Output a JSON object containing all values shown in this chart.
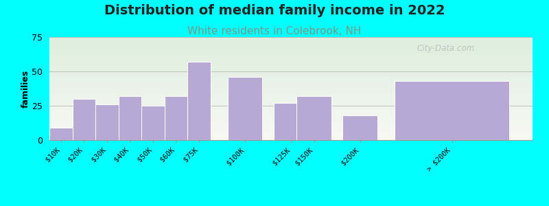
{
  "title": "Distribution of median family income in 2022",
  "subtitle": "White residents in Colebrook, NH",
  "ylabel": "families",
  "categories": [
    "$10K",
    "$20K",
    "$30K",
    "$40K",
    "$50K",
    "$60K",
    "$75K",
    "$100K",
    "$125K",
    "$150K",
    "$200K",
    "> $200K"
  ],
  "values": [
    9,
    30,
    26,
    32,
    25,
    32,
    57,
    46,
    27,
    32,
    18,
    43
  ],
  "bar_color": "#b8a9d4",
  "bar_edge_color": "#ffffff",
  "ylim": [
    0,
    75
  ],
  "yticks": [
    0,
    25,
    50,
    75
  ],
  "background_color": "#00ffff",
  "plot_bg_top": "#ddeedd",
  "plot_bg_bottom": "#f8f8f4",
  "title_fontsize": 14,
  "subtitle_fontsize": 11,
  "subtitle_color": "#779988",
  "ylabel_fontsize": 9,
  "watermark": "City-Data.com",
  "x_positions": [
    0.5,
    1.5,
    2.5,
    3.5,
    4.5,
    5.5,
    6.5,
    8.5,
    10.5,
    11.5,
    13.5,
    17.5
  ],
  "bar_widths": [
    1.0,
    1.0,
    1.0,
    1.0,
    1.0,
    1.0,
    1.0,
    1.5,
    1.5,
    1.5,
    1.5,
    5.0
  ],
  "xlim": [
    0,
    21.0
  ]
}
